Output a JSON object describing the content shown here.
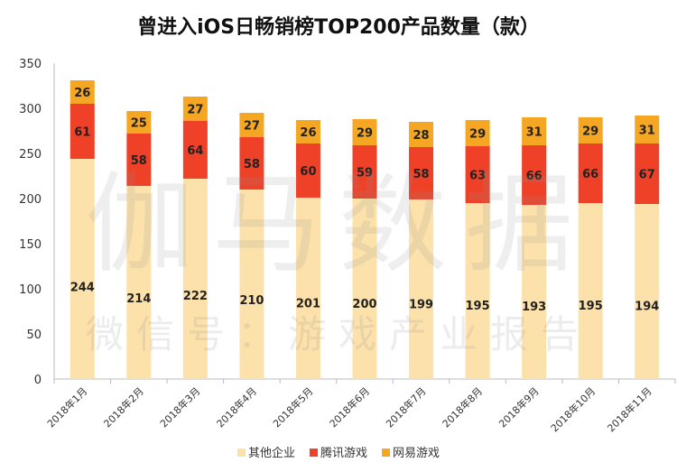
{
  "chart_data": {
    "type": "bar",
    "stacked": true,
    "title": "曾进入iOS日畅销榜TOP200产品数量（款）",
    "categories": [
      "2018年1月",
      "2018年2月",
      "2018年3月",
      "2018年4月",
      "2018年5月",
      "2018年6月",
      "2018年7月",
      "2018年8月",
      "2018年9月",
      "2018年10月",
      "2018年11月"
    ],
    "series": [
      {
        "name": "其他企业",
        "color": "#FCE1AA",
        "values": [
          244,
          214,
          222,
          210,
          201,
          200,
          199,
          195,
          193,
          195,
          194
        ]
      },
      {
        "name": "腾讯游戏",
        "color": "#EE4127",
        "values": [
          61,
          58,
          64,
          58,
          60,
          59,
          58,
          63,
          66,
          66,
          67
        ]
      },
      {
        "name": "网易游戏",
        "color": "#F5A623",
        "values": [
          26,
          25,
          27,
          27,
          26,
          29,
          28,
          29,
          31,
          29,
          31
        ]
      }
    ],
    "ylim": [
      0,
      350
    ],
    "yticks": [
      0,
      50,
      100,
      150,
      200,
      250,
      300,
      350
    ],
    "grid": false,
    "legend": "bottom",
    "watermark": [
      "伽马数据",
      "微信号：游戏产业报告"
    ]
  }
}
